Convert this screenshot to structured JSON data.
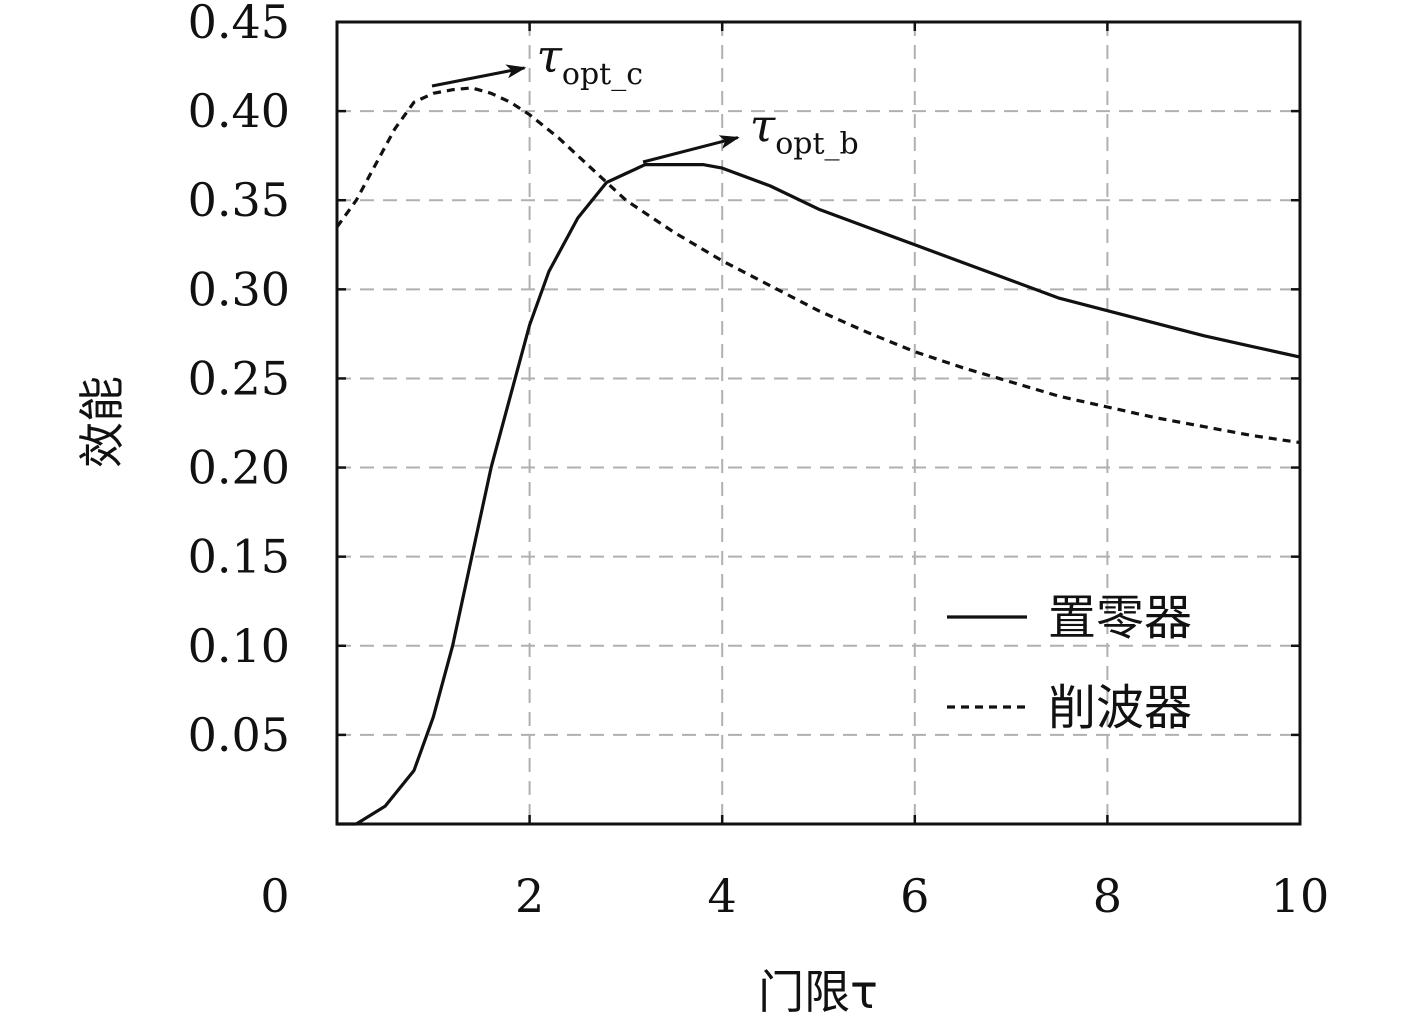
{
  "chart_data": {
    "type": "line",
    "title": "",
    "xlabel": "门限τ",
    "ylabel": "效能",
    "xlim": [
      0,
      10
    ],
    "ylim": [
      0,
      0.45
    ],
    "x_ticks": [
      0,
      2,
      4,
      6,
      8,
      10
    ],
    "x_tick_labels": [
      "0",
      "2",
      "4",
      "6",
      "8",
      "10"
    ],
    "y_ticks": [
      0.05,
      0.1,
      0.15,
      0.2,
      0.25,
      0.3,
      0.35,
      0.4,
      0.45
    ],
    "y_tick_labels": [
      "0.05",
      "0.10",
      "0.15",
      "0.20",
      "0.25",
      "0.30",
      "0.35",
      "0.40",
      "0.45"
    ],
    "grid": true,
    "legend_position": "bottom-right",
    "series": [
      {
        "name": "置零器",
        "style": "solid",
        "x": [
          0,
          0.2,
          0.5,
          0.8,
          1.0,
          1.2,
          1.4,
          1.6,
          1.8,
          2.0,
          2.2,
          2.5,
          2.8,
          3.0,
          3.2,
          3.5,
          3.8,
          4.0,
          4.5,
          5.0,
          5.5,
          6.0,
          6.5,
          7.0,
          7.5,
          8.0,
          8.5,
          9.0,
          9.5,
          10.0
        ],
        "y": [
          0.0,
          0.0,
          0.01,
          0.03,
          0.06,
          0.1,
          0.15,
          0.2,
          0.24,
          0.28,
          0.31,
          0.34,
          0.36,
          0.365,
          0.37,
          0.37,
          0.37,
          0.368,
          0.358,
          0.345,
          0.335,
          0.325,
          0.315,
          0.305,
          0.295,
          0.288,
          0.281,
          0.274,
          0.268,
          0.262
        ]
      },
      {
        "name": "削波器",
        "style": "dashed",
        "x": [
          0,
          0.2,
          0.4,
          0.6,
          0.8,
          1.0,
          1.2,
          1.4,
          1.6,
          1.8,
          2.0,
          2.3,
          2.6,
          3.0,
          3.5,
          4.0,
          4.5,
          5.0,
          5.5,
          6.0,
          6.5,
          7.0,
          7.5,
          8.0,
          8.5,
          9.0,
          9.5,
          10.0
        ],
        "y": [
          0.335,
          0.35,
          0.37,
          0.39,
          0.405,
          0.41,
          0.412,
          0.413,
          0.41,
          0.405,
          0.398,
          0.385,
          0.37,
          0.35,
          0.332,
          0.316,
          0.302,
          0.288,
          0.276,
          0.265,
          0.256,
          0.248,
          0.24,
          0.234,
          0.228,
          0.223,
          0.218,
          0.214
        ]
      }
    ],
    "annotations": [
      {
        "symbol": "τ",
        "subscript": "opt_c",
        "points_to": [
          1.5,
          0.413
        ]
      },
      {
        "symbol": "τ",
        "subscript": "opt_b",
        "points_to": [
          3.3,
          0.37
        ]
      }
    ]
  }
}
